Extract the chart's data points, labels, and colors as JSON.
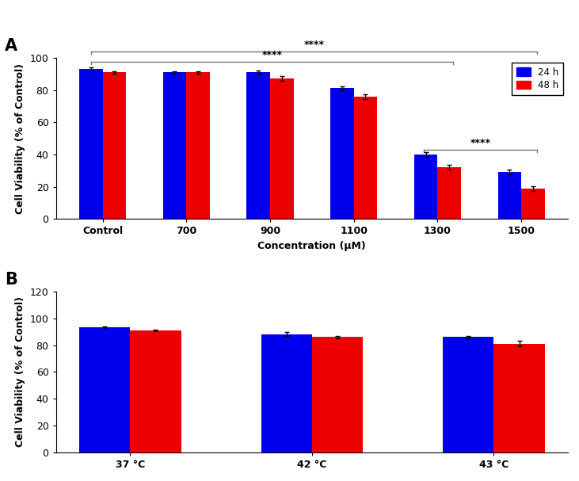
{
  "panel_A": {
    "categories": [
      "Control",
      "700",
      "900",
      "1100",
      "1300",
      "1500"
    ],
    "blue_values": [
      93,
      91,
      91,
      81,
      40,
      29
    ],
    "red_values": [
      91,
      91,
      87,
      76,
      32,
      19
    ],
    "blue_errors": [
      0.8,
      0.8,
      1.0,
      1.2,
      1.5,
      1.5
    ],
    "red_errors": [
      0.8,
      0.8,
      1.5,
      1.5,
      1.5,
      1.5
    ],
    "ylabel": "Cell Viability (% of Control)",
    "xlabel": "Concentration (μM)",
    "ylim": [
      0,
      100
    ],
    "yticks": [
      0,
      20,
      40,
      60,
      80,
      100
    ],
    "panel_label": "A"
  },
  "panel_B": {
    "categories": [
      "37 °C",
      "42 °C",
      "43 °C"
    ],
    "blue_values": [
      93,
      88,
      86
    ],
    "red_values": [
      91,
      86,
      81
    ],
    "blue_errors": [
      0.8,
      1.5,
      1.0
    ],
    "red_errors": [
      0.8,
      1.0,
      2.0
    ],
    "ylabel": "Cell Viability (% of Control)",
    "xlabel": "",
    "ylim": [
      0,
      120
    ],
    "yticks": [
      0,
      20,
      40,
      60,
      80,
      100,
      120
    ],
    "panel_label": "B"
  },
  "blue_color": "#0000EE",
  "red_color": "#EE0000",
  "bar_width": 0.28,
  "legend_labels": [
    "24 h",
    "48 h"
  ],
  "significance_color": "#777777",
  "background_color": "#ffffff"
}
